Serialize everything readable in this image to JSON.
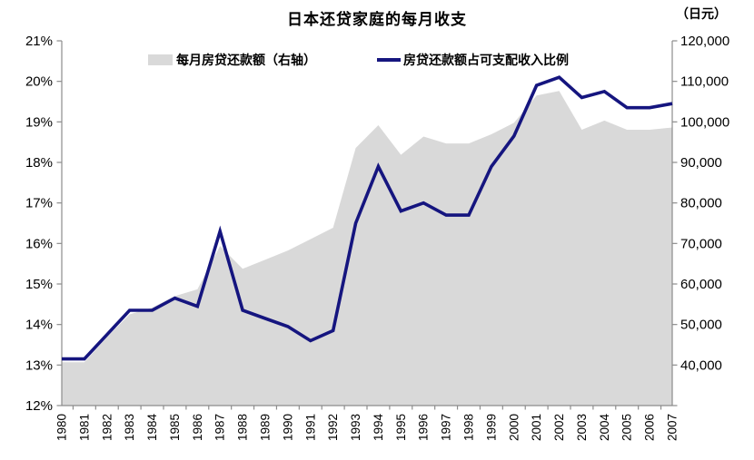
{
  "chart": {
    "title": "日本还贷家庭的每月收支",
    "right_axis_unit": "（日元）",
    "legend": {
      "area_label": "每月房贷还款额（右轴）",
      "line_label": "房贷还款额占可支配收入比例"
    },
    "colors": {
      "line": "#15157F",
      "area": "#D9D9D9",
      "axis": "#8C8C8C",
      "text": "#000000",
      "background": "#FFFFFF"
    }
  },
  "chart_data": {
    "type": "line",
    "title": "日本还贷家庭的每月收支",
    "grid": false,
    "legend_position": "top",
    "categories": [
      1980,
      1981,
      1982,
      1983,
      1984,
      1985,
      1986,
      1987,
      1988,
      1989,
      1990,
      1991,
      1992,
      1993,
      1994,
      1995,
      1996,
      1997,
      1998,
      1999,
      2000,
      2001,
      2002,
      2003,
      2004,
      2005,
      2006,
      2007
    ],
    "series": [
      {
        "name": "每月房贷还款额（右轴）",
        "type": "area",
        "axis": "right",
        "unit": "日元",
        "color": "#D9D9D9",
        "values": [
          49500,
          49500,
          55000,
          60000,
          61500,
          64000,
          65500,
          75000,
          70000,
          72000,
          74000,
          76500,
          79000,
          96500,
          101500,
          95000,
          99000,
          97500,
          97500,
          99500,
          102000,
          108000,
          109000,
          100500,
          102500,
          100500,
          100500,
          101000
        ]
      },
      {
        "name": "房贷还款额占可支配收入比例",
        "type": "line",
        "axis": "left",
        "unit": "%",
        "color": "#15157F",
        "values": [
          13.15,
          13.15,
          13.75,
          14.35,
          14.35,
          14.65,
          14.45,
          16.3,
          14.35,
          14.15,
          13.95,
          13.6,
          13.85,
          16.5,
          17.9,
          16.8,
          17.0,
          16.7,
          16.7,
          17.9,
          18.65,
          19.9,
          20.1,
          19.6,
          19.75,
          19.35,
          19.35,
          19.45
        ]
      }
    ],
    "left_axis": {
      "min": 12,
      "max": 21,
      "step": 1,
      "ticks": [
        "21%",
        "20%",
        "19%",
        "18%",
        "17%",
        "16%",
        "15%",
        "14%",
        "13%",
        "12%"
      ]
    },
    "right_axis": {
      "min": 40000,
      "max": 120000,
      "step": 10000,
      "unit": "（日元）",
      "ticks": [
        "120,000",
        "110,000",
        "100,000",
        "90,000",
        "80,000",
        "70,000",
        "60,000",
        "50,000",
        "40,000"
      ]
    }
  }
}
